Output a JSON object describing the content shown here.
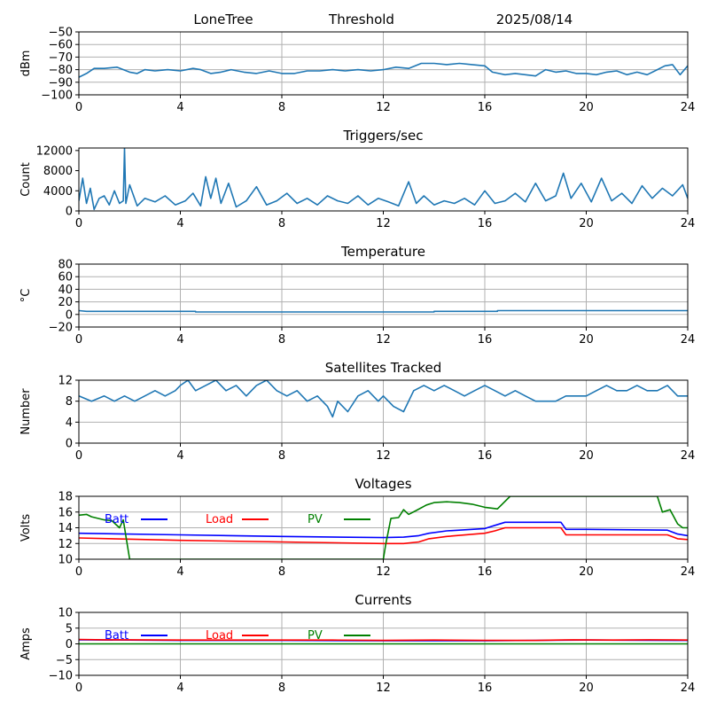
{
  "header": {
    "station": "LoneTree",
    "mode": "Threshold",
    "date": "2025/08/14"
  },
  "x_axis": {
    "range": [
      0,
      24
    ],
    "ticks": [
      0,
      4,
      8,
      12,
      16,
      20,
      24
    ],
    "tick_labels": [
      "0",
      "4",
      "8",
      "12",
      "16",
      "20",
      "24"
    ]
  },
  "colors": {
    "default_series": "#1f77b4",
    "batt": "#0000ff",
    "load": "#ff0000",
    "pv": "#008000",
    "grid": "#b0b0b0"
  },
  "chart_data": [
    {
      "type": "line",
      "title": "",
      "ylabel": "dBm",
      "ylim": [
        -100,
        -50
      ],
      "yticks": [
        -100,
        -90,
        -80,
        -70,
        -60,
        -50
      ],
      "ytick_labels": [
        "−100",
        "−90",
        "−80",
        "−70",
        "−60",
        "−50"
      ],
      "grid": true,
      "x": [
        0,
        0.3,
        0.6,
        1,
        1.5,
        2,
        2.3,
        2.6,
        3,
        3.5,
        4,
        4.5,
        4.8,
        5.2,
        5.6,
        6,
        6.5,
        7,
        7.5,
        8,
        8.5,
        9,
        9.5,
        10,
        10.5,
        11,
        11.5,
        12,
        12.5,
        13,
        13.5,
        14,
        14.5,
        15,
        15.5,
        16,
        16.3,
        16.8,
        17.2,
        17.6,
        18,
        18.4,
        18.8,
        19.2,
        19.6,
        20,
        20.4,
        20.8,
        21.2,
        21.6,
        22,
        22.4,
        22.8,
        23.1,
        23.4,
        23.7,
        24
      ],
      "series": [
        {
          "values": [
            -86,
            -83,
            -79,
            -79,
            -78,
            -82,
            -83,
            -80,
            -81,
            -80,
            -81,
            -79,
            -80,
            -83,
            -82,
            -80,
            -82,
            -83,
            -81,
            -83,
            -83,
            -81,
            -81,
            -80,
            -81,
            -80,
            -81,
            -80,
            -78,
            -79,
            -75,
            -75,
            -76,
            -75,
            -76,
            -77,
            -82,
            -84,
            -83,
            -84,
            -85,
            -80,
            -82,
            -81,
            -83,
            -83,
            -84,
            -82,
            -81,
            -84,
            -82,
            -84,
            -80,
            -77,
            -76,
            -84,
            -77
          ]
        }
      ]
    },
    {
      "type": "line",
      "title": "Triggers/sec",
      "ylabel": "Count",
      "ylim": [
        0,
        12500
      ],
      "yticks": [
        0,
        4000,
        8000,
        12000
      ],
      "ytick_labels": [
        "0",
        "4000",
        "8000",
        "12000"
      ],
      "grid": false,
      "x": [
        0,
        0.15,
        0.3,
        0.45,
        0.6,
        0.8,
        1,
        1.2,
        1.4,
        1.6,
        1.75,
        1.8,
        1.85,
        2,
        2.3,
        2.6,
        3,
        3.4,
        3.8,
        4.2,
        4.5,
        4.8,
        5,
        5.2,
        5.4,
        5.6,
        5.9,
        6.2,
        6.6,
        7,
        7.4,
        7.8,
        8.2,
        8.6,
        9,
        9.4,
        9.8,
        10.2,
        10.6,
        11,
        11.4,
        11.8,
        12.2,
        12.6,
        13,
        13.3,
        13.6,
        14,
        14.4,
        14.8,
        15.2,
        15.6,
        16,
        16.4,
        16.8,
        17.2,
        17.6,
        18,
        18.4,
        18.8,
        19.1,
        19.4,
        19.8,
        20.2,
        20.6,
        21,
        21.4,
        21.8,
        22.2,
        22.6,
        23,
        23.4,
        23.8,
        24
      ],
      "series": [
        {
          "values": [
            2000,
            6500,
            1500,
            4500,
            300,
            2500,
            3000,
            1200,
            4000,
            1500,
            2000,
            12500,
            1500,
            5200,
            1000,
            2500,
            1800,
            3000,
            1200,
            2000,
            3500,
            1000,
            6800,
            2500,
            6500,
            1500,
            5500,
            800,
            2000,
            4800,
            1200,
            2000,
            3500,
            1500,
            2500,
            1200,
            3000,
            2000,
            1500,
            3000,
            1200,
            2500,
            1800,
            1000,
            5800,
            1500,
            3000,
            1200,
            2000,
            1500,
            2500,
            1200,
            4000,
            1500,
            2000,
            3500,
            1800,
            5500,
            2000,
            3000,
            7500,
            2500,
            5500,
            1800,
            6500,
            2000,
            3500,
            1500,
            5000,
            2500,
            4500,
            3000,
            5200,
            2500
          ]
        }
      ]
    },
    {
      "type": "line",
      "title": "Temperature",
      "ylabel": "°C",
      "ylim": [
        -20,
        80
      ],
      "yticks": [
        -20,
        0,
        20,
        40,
        60,
        80
      ],
      "ytick_labels": [
        "−20",
        "0",
        "20",
        "40",
        "60",
        "80"
      ],
      "grid": true,
      "x": [
        0,
        0.3,
        4.6,
        4.6,
        14,
        14,
        16.5,
        16.5,
        24
      ],
      "series": [
        {
          "values": [
            6,
            5,
            5,
            4,
            4,
            5,
            5,
            6,
            6
          ]
        }
      ]
    },
    {
      "type": "line",
      "title": "Satellites Tracked",
      "ylabel": "Number",
      "ylim": [
        0,
        12
      ],
      "yticks": [
        0,
        4,
        8,
        12
      ],
      "ytick_labels": [
        "0",
        "4",
        "8",
        "12"
      ],
      "grid": true,
      "x": [
        0,
        0.5,
        1,
        1.4,
        1.8,
        2.2,
        2.6,
        3,
        3.4,
        3.8,
        4,
        4.3,
        4.6,
        5,
        5.4,
        5.8,
        6.2,
        6.6,
        7,
        7.4,
        7.8,
        8.2,
        8.6,
        9,
        9.4,
        9.8,
        10,
        10.2,
        10.6,
        11,
        11.4,
        11.8,
        12,
        12.4,
        12.8,
        13.2,
        13.6,
        14,
        14.4,
        14.8,
        15.2,
        15.6,
        16,
        16.4,
        16.8,
        17.2,
        17.6,
        18,
        18.4,
        18.8,
        19.2,
        19.6,
        20,
        20.4,
        20.8,
        21.2,
        21.6,
        22,
        22.4,
        22.8,
        23.2,
        23.6,
        24
      ],
      "series": [
        {
          "values": [
            9,
            8,
            9,
            8,
            9,
            8,
            9,
            10,
            9,
            10,
            11,
            12,
            10,
            11,
            12,
            10,
            11,
            9,
            11,
            12,
            10,
            9,
            10,
            8,
            9,
            7,
            5,
            8,
            6,
            9,
            10,
            8,
            9,
            7,
            6,
            10,
            11,
            10,
            11,
            10,
            9,
            10,
            11,
            10,
            9,
            10,
            9,
            8,
            8,
            8,
            9,
            9,
            9,
            10,
            11,
            10,
            10,
            11,
            10,
            10,
            11,
            9,
            9
          ]
        }
      ]
    },
    {
      "type": "line",
      "title": "Voltages",
      "ylabel": "Volts",
      "ylim": [
        10,
        18
      ],
      "yticks": [
        10,
        12,
        14,
        16,
        18
      ],
      "ytick_labels": [
        "10",
        "12",
        "14",
        "16",
        "18"
      ],
      "grid": true,
      "legend": "inline-top",
      "series": [
        {
          "name": "Batt",
          "color": "batt",
          "x": [
            0,
            4,
            8,
            12,
            12.8,
            13.4,
            13.8,
            14.5,
            16,
            16.4,
            16.8,
            19,
            19.2,
            20,
            23.2,
            23.6,
            24
          ],
          "values": [
            13.3,
            13.1,
            12.9,
            12.75,
            12.8,
            13.0,
            13.3,
            13.6,
            13.9,
            14.3,
            14.7,
            14.7,
            13.8,
            13.8,
            13.7,
            13.2,
            13.0
          ]
        },
        {
          "name": "Load",
          "color": "load",
          "x": [
            0,
            4,
            8,
            12,
            12.8,
            13.4,
            13.8,
            14.5,
            16,
            16.4,
            16.8,
            19,
            19.2,
            20,
            23.2,
            23.6,
            24
          ],
          "values": [
            12.7,
            12.4,
            12.2,
            12.0,
            12.0,
            12.2,
            12.6,
            12.9,
            13.3,
            13.6,
            14.0,
            14.0,
            13.1,
            13.1,
            13.1,
            12.6,
            12.5
          ]
        },
        {
          "name": "PV",
          "color": "pv",
          "x": [
            0,
            0.3,
            0.5,
            1,
            1.3,
            1.6,
            1.75,
            1.9,
            2.0,
            12.0,
            12.1,
            12.3,
            12.6,
            12.8,
            13.0,
            13.3,
            13.7,
            14.0,
            14.5,
            15.0,
            15.5,
            16.0,
            16.5,
            17.0,
            22.8,
            23.0,
            23.3,
            23.6,
            23.8,
            24.0
          ],
          "values": [
            15.6,
            15.7,
            15.4,
            15.0,
            14.9,
            14.0,
            15.0,
            12.0,
            10.0,
            10.0,
            12.0,
            15.2,
            15.3,
            16.3,
            15.7,
            16.2,
            16.9,
            17.2,
            17.3,
            17.2,
            17.0,
            16.6,
            16.4,
            18.0,
            18.0,
            16.0,
            16.3,
            14.5,
            14.0,
            14.0
          ]
        }
      ]
    },
    {
      "type": "line",
      "title": "Currents",
      "ylabel": "Amps",
      "ylim": [
        -10,
        10
      ],
      "yticks": [
        -10,
        -5,
        0,
        5,
        10
      ],
      "ytick_labels": [
        "−10",
        "−5",
        "0",
        "5",
        "10"
      ],
      "grid": true,
      "legend": "inline-top",
      "series": [
        {
          "name": "Batt",
          "color": "batt",
          "x": [
            0,
            4,
            8,
            12,
            16,
            20,
            24
          ],
          "values": [
            1.3,
            1.1,
            1.1,
            1.0,
            1.0,
            1.2,
            1.1
          ]
        },
        {
          "name": "Load",
          "color": "load",
          "x": [
            0,
            1,
            2,
            4,
            6,
            8,
            10,
            12,
            14,
            16,
            18,
            19.5,
            21,
            22.5,
            24
          ],
          "values": [
            1.4,
            1.3,
            1.3,
            1.2,
            1.2,
            1.2,
            1.2,
            1.1,
            1.2,
            1.1,
            1.1,
            1.3,
            1.2,
            1.3,
            1.2
          ]
        },
        {
          "name": "PV",
          "color": "pv",
          "x": [
            0,
            24
          ],
          "values": [
            0,
            0
          ]
        }
      ]
    }
  ]
}
